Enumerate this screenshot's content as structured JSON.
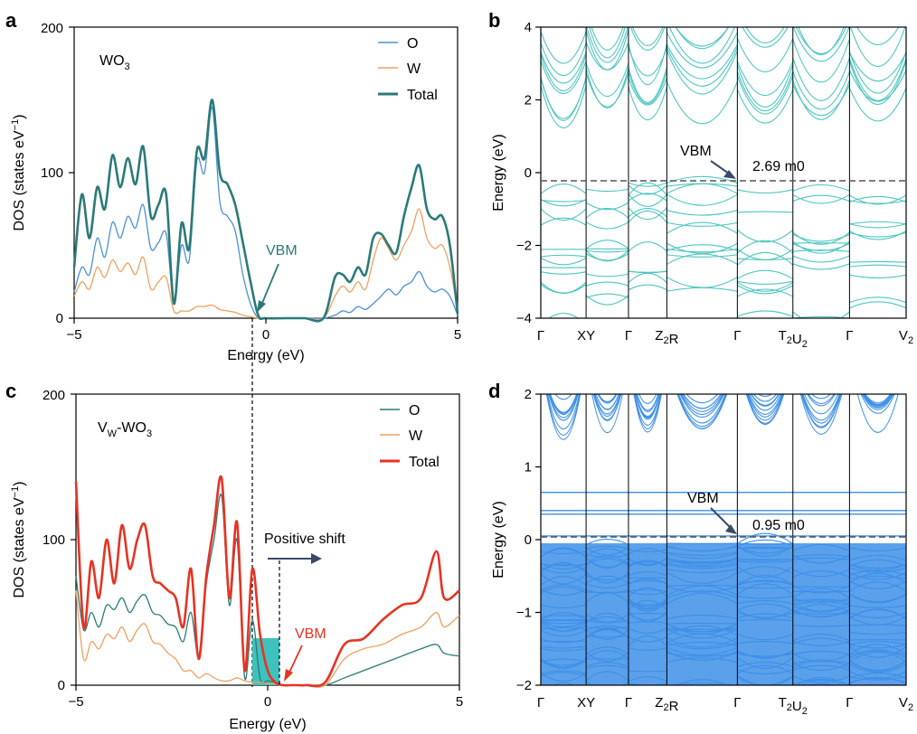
{
  "chart_data": [
    {
      "panel": "a",
      "type": "line",
      "label_main": "WO",
      "label_sub": "3",
      "xlabel": "Energy (eV)",
      "ylabel": "DOS (states eV",
      "ylabel_sup": "−1",
      "ylabel_end": ")",
      "xlim": [
        -5,
        5
      ],
      "ylim": [
        0,
        200
      ],
      "xticks": [
        "−5",
        "0",
        "5"
      ],
      "yticks": [
        "0",
        "100",
        "200"
      ],
      "annotation": "VBM",
      "x": [
        -5,
        -4.8,
        -4.6,
        -4.4,
        -4.2,
        -4.0,
        -3.8,
        -3.6,
        -3.4,
        -3.2,
        -3.0,
        -2.8,
        -2.6,
        -2.4,
        -2.2,
        -2.0,
        -1.8,
        -1.6,
        -1.4,
        -1.2,
        -1.0,
        -0.8,
        -0.6,
        -0.4,
        -0.2,
        0,
        0.5,
        1.0,
        1.5,
        1.8,
        2.0,
        2.2,
        2.4,
        2.6,
        2.8,
        3.0,
        3.2,
        3.4,
        3.6,
        3.8,
        4.0,
        4.2,
        4.4,
        4.6,
        4.8,
        5.0
      ],
      "series": [
        {
          "name": "O",
          "color": "#4a90d9",
          "values": [
            18,
            35,
            30,
            55,
            42,
            66,
            55,
            70,
            62,
            78,
            48,
            52,
            58,
            12,
            50,
            40,
            108,
            100,
            145,
            80,
            70,
            60,
            30,
            10,
            0,
            0,
            0,
            0,
            0,
            2,
            5,
            4,
            8,
            6,
            10,
            15,
            20,
            16,
            22,
            25,
            32,
            22,
            18,
            20,
            15,
            2
          ]
        },
        {
          "name": "W",
          "color": "#f0a060",
          "values": [
            15,
            25,
            20,
            35,
            28,
            40,
            32,
            38,
            30,
            42,
            20,
            25,
            28,
            5,
            5,
            5,
            8,
            8,
            9,
            6,
            5,
            4,
            2,
            1,
            0,
            0,
            0,
            0,
            0,
            15,
            22,
            18,
            25,
            20,
            40,
            55,
            48,
            40,
            50,
            60,
            75,
            55,
            48,
            50,
            35,
            5
          ]
        },
        {
          "name": "Total",
          "color": "#2b7a78",
          "values": [
            35,
            85,
            55,
            90,
            75,
            112,
            90,
            110,
            92,
            118,
            70,
            78,
            85,
            10,
            65,
            48,
            115,
            110,
            150,
            100,
            92,
            78,
            52,
            25,
            2,
            0,
            0,
            0,
            0,
            28,
            30,
            25,
            35,
            30,
            55,
            58,
            50,
            45,
            70,
            90,
            105,
            75,
            68,
            70,
            50,
            3
          ]
        }
      ]
    },
    {
      "panel": "b",
      "type": "line",
      "ylabel": "Energy (eV)",
      "ylim": [
        -4,
        4
      ],
      "yticks": [
        "4",
        "2",
        "0",
        "−2",
        "−4"
      ],
      "kpoints": [
        "Γ",
        "XY",
        "Γ",
        "ZR",
        "Γ",
        "TU",
        "Γ",
        "V"
      ],
      "kpoint_subs": [
        "",
        "",
        "",
        "2",
        "",
        "2 2",
        "",
        "2"
      ],
      "vbm_label": "VBM",
      "mass_label": "2.69 m0",
      "vbm_energy": -0.2,
      "color": "#4ec5c1"
    },
    {
      "panel": "c",
      "type": "line",
      "label_main": "V",
      "label_sub": "W",
      "label_rest": "-WO",
      "label_sub2": "3",
      "xlabel": "Energy (eV)",
      "ylabel": "DOS (states eV",
      "ylabel_sup": "−1",
      "ylabel_end": ")",
      "xlim": [
        -5,
        5
      ],
      "ylim": [
        0,
        200
      ],
      "xticks": [
        "−5",
        "0",
        "5"
      ],
      "yticks": [
        "0",
        "100",
        "200"
      ],
      "annotation_shift": "Positive shift",
      "annotation": "VBM",
      "x": [
        -5,
        -4.8,
        -4.6,
        -4.4,
        -4.2,
        -4.0,
        -3.8,
        -3.6,
        -3.4,
        -3.2,
        -3.0,
        -2.8,
        -2.6,
        -2.4,
        -2.2,
        -2.0,
        -1.8,
        -1.6,
        -1.4,
        -1.2,
        -1.0,
        -0.8,
        -0.6,
        -0.4,
        -0.2,
        0,
        0.2,
        0.4,
        0.6,
        0.8,
        1.0,
        1.5,
        2.0,
        2.5,
        3.0,
        3.5,
        4.0,
        4.4,
        4.6,
        5.0
      ],
      "series": [
        {
          "name": "O",
          "color": "#2b7a78",
          "values": [
            75,
            38,
            50,
            40,
            55,
            52,
            60,
            50,
            58,
            62,
            50,
            48,
            42,
            40,
            30,
            50,
            20,
            70,
            100,
            130,
            55,
            100,
            5,
            45,
            5,
            3,
            2,
            0,
            0,
            0,
            0,
            0,
            5,
            10,
            15,
            20,
            25,
            28,
            22,
            20
          ]
        },
        {
          "name": "W",
          "color": "#f0a060",
          "values": [
            65,
            18,
            30,
            25,
            35,
            32,
            40,
            30,
            38,
            42,
            30,
            28,
            22,
            18,
            10,
            10,
            5,
            8,
            5,
            3,
            3,
            5,
            3,
            2,
            2,
            1,
            1,
            0,
            0,
            0,
            0,
            0,
            18,
            25,
            28,
            35,
            40,
            50,
            40,
            48
          ]
        },
        {
          "name": "Total",
          "color": "#e63323",
          "values": [
            140,
            40,
            85,
            60,
            100,
            70,
            110,
            80,
            100,
            110,
            75,
            70,
            65,
            60,
            40,
            80,
            18,
            75,
            110,
            142,
            60,
            112,
            10,
            80,
            35,
            10,
            2,
            0,
            0,
            0,
            0,
            2,
            28,
            32,
            45,
            55,
            60,
            92,
            60,
            65
          ]
        }
      ]
    },
    {
      "panel": "d",
      "type": "line",
      "ylabel": "Energy (eV)",
      "ylim": [
        -2,
        2
      ],
      "yticks": [
        "2",
        "1",
        "0",
        "−1",
        "−2"
      ],
      "kpoints": [
        "Γ",
        "XY",
        "Γ",
        "ZR",
        "Γ",
        "TU",
        "Γ",
        "V"
      ],
      "kpoint_subs": [
        "",
        "",
        "",
        "2",
        "",
        "2 2",
        "",
        "2"
      ],
      "vbm_label": "VBM",
      "mass_label": "0.95 m0",
      "vbm_energy": 0.0,
      "color": "#3d8fe8"
    }
  ],
  "letters": {
    "a": "a",
    "b": "b",
    "c": "c",
    "d": "d"
  }
}
